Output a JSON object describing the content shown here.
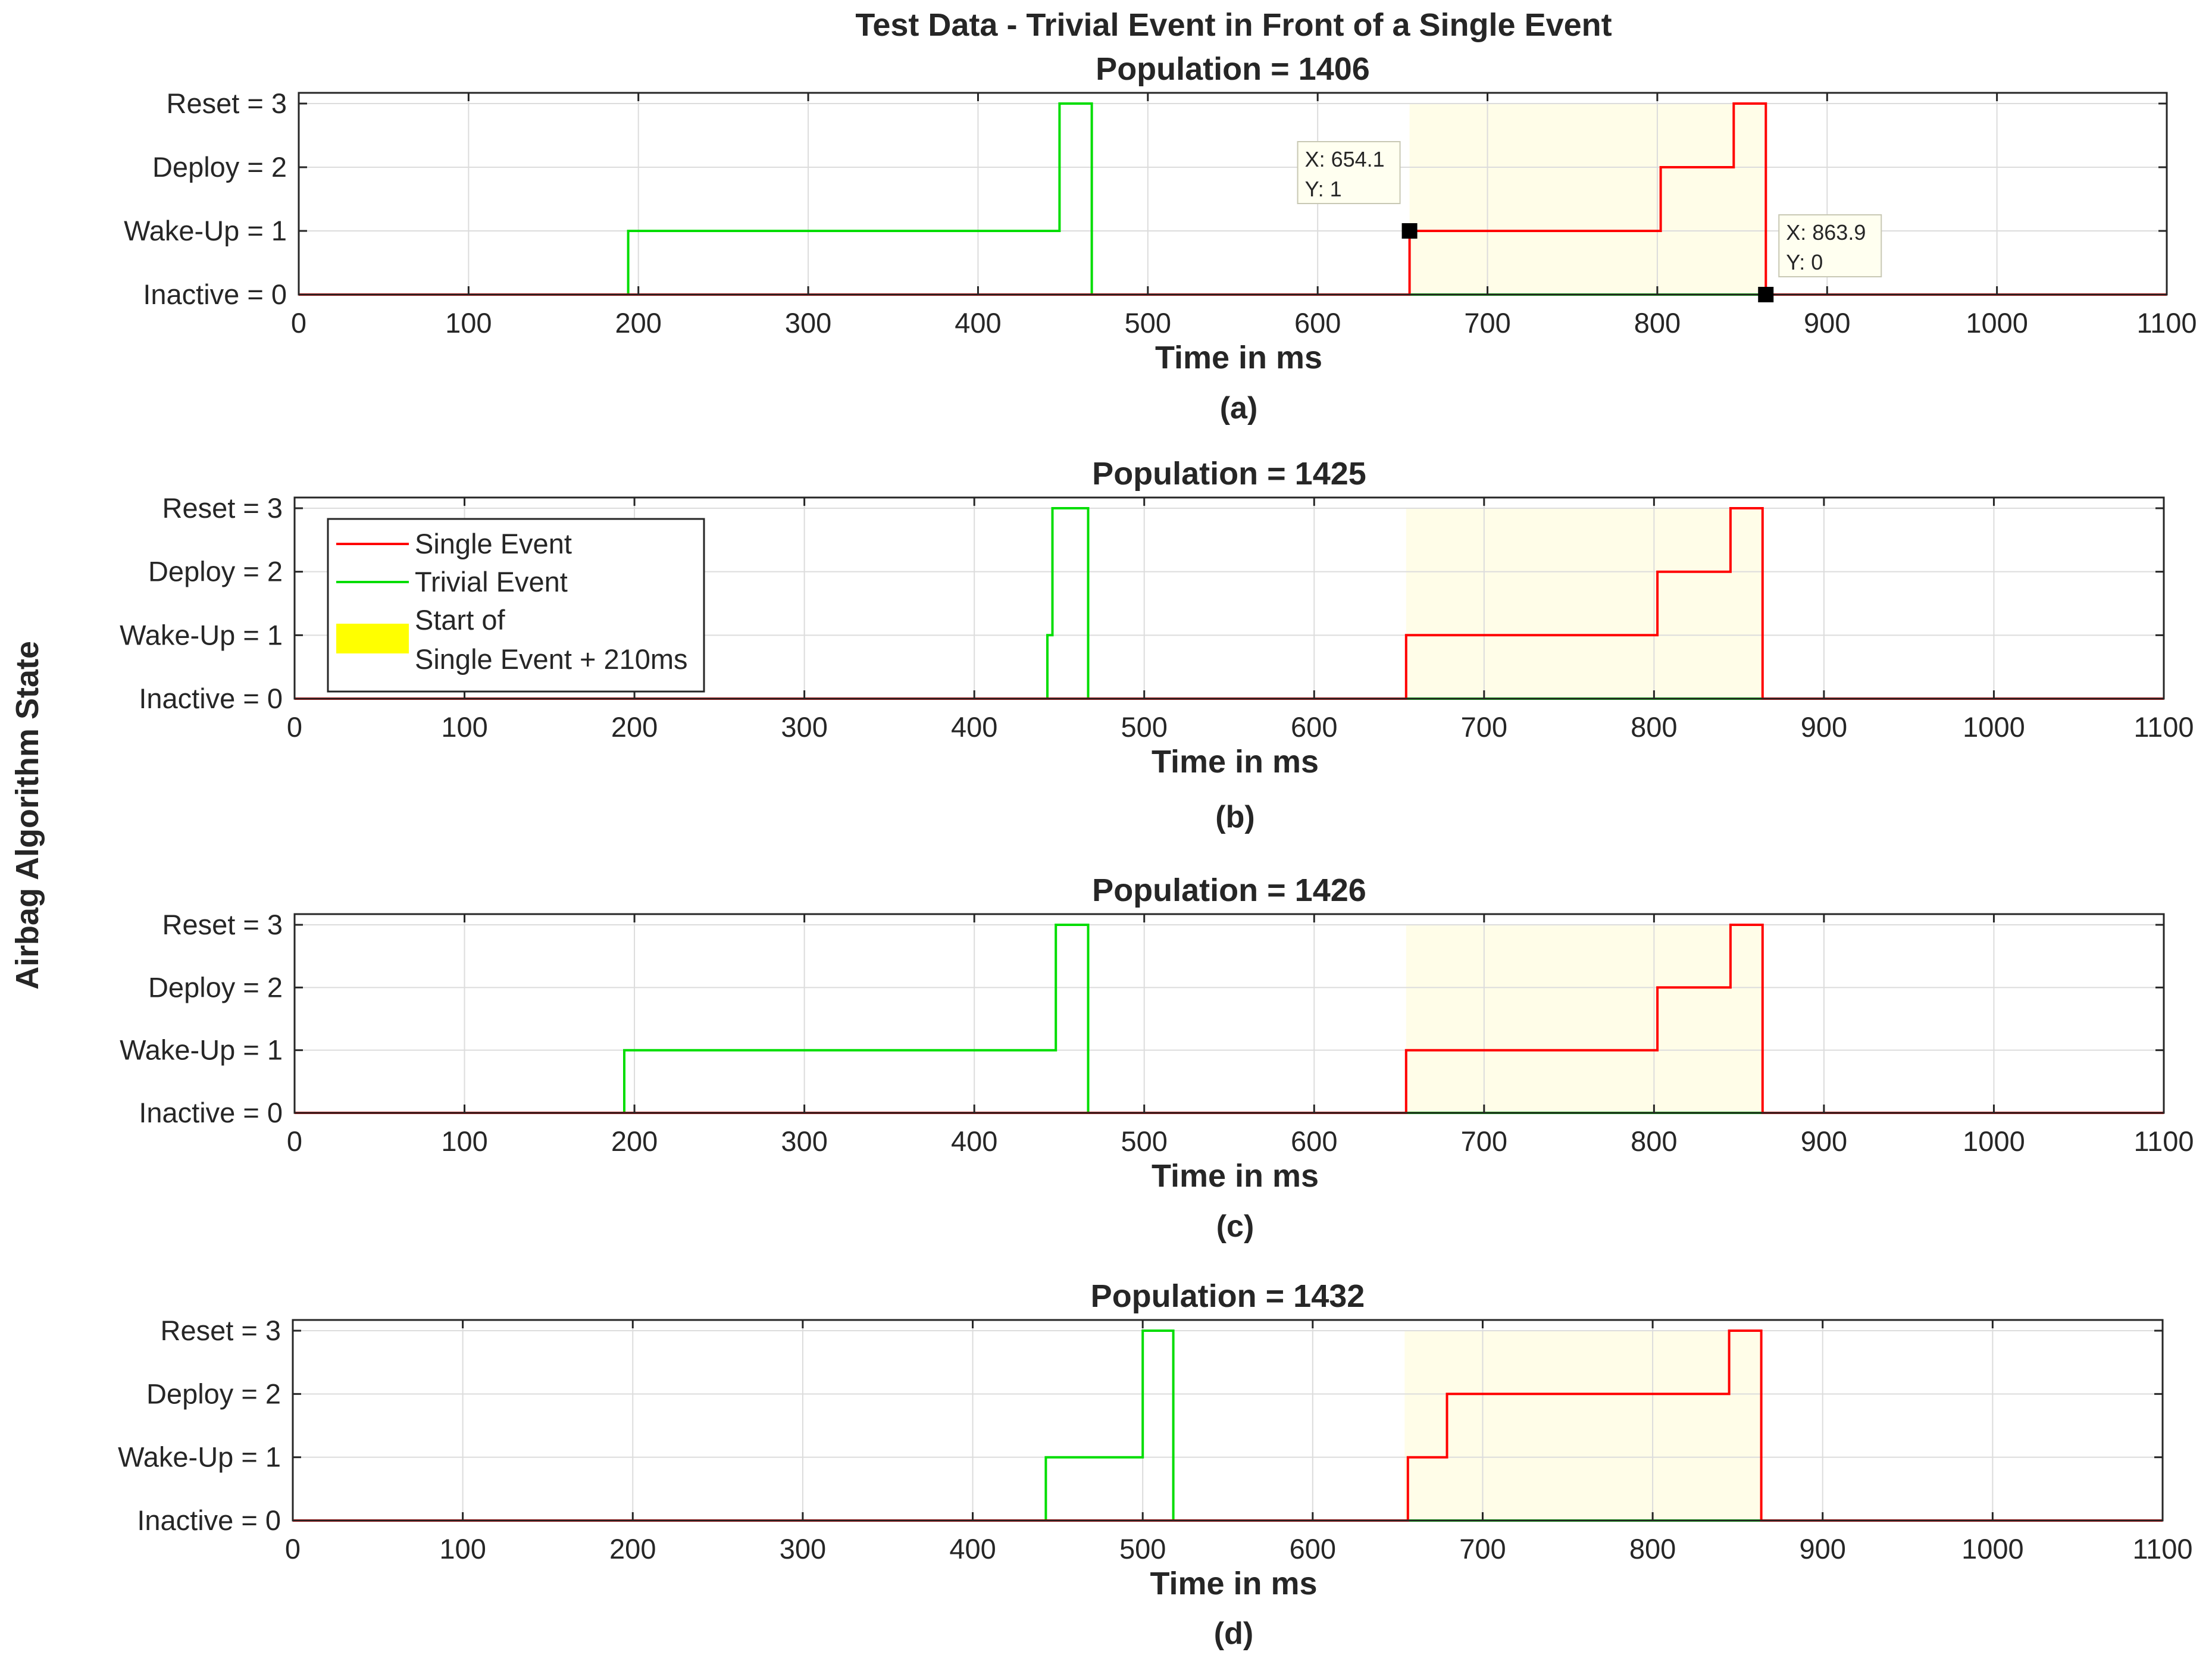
{
  "figure": {
    "title": "Test Data - Trivial Event in Front of a Single Event",
    "ylabel": "Airbag Algorithm State"
  },
  "legend": {
    "single": "Single Event",
    "trivial": "Trivial Event",
    "window_line1": "Start of",
    "window_line2": "Single Event + 210ms"
  },
  "colors": {
    "single": "#ff0000",
    "trivial": "#00dd00",
    "window": "#fffde8",
    "window_legend": "#ffff00",
    "grid": "#dcdcdc",
    "axis": "#262626"
  },
  "chart_data": [
    {
      "type": "line",
      "id": "a",
      "title": "Population = 1406",
      "xlabel": "Time in ms",
      "sublabel": "(a)",
      "xlim": [
        0,
        1100
      ],
      "ylim": [
        0,
        3
      ],
      "xticks": [
        0,
        100,
        200,
        300,
        400,
        500,
        600,
        700,
        800,
        900,
        1000,
        1100
      ],
      "yticks": [
        0,
        1,
        2,
        3
      ],
      "ytick_labels": [
        "Inactive = 0",
        "Wake-Up = 1",
        "Deploy = 2",
        "Reset = 3"
      ],
      "grid": true,
      "highlight": [
        654.1,
        863.9
      ],
      "series": [
        {
          "name": "Trivial Event",
          "x": [
            0,
            194,
            194,
            448,
            448,
            467,
            467,
            1100
          ],
          "y": [
            0,
            0,
            1,
            1,
            3,
            3,
            0,
            0
          ]
        },
        {
          "name": "Single Event",
          "x": [
            0,
            654.1,
            654.1,
            802,
            802,
            845,
            845,
            863.9,
            863.9,
            1100
          ],
          "y": [
            0,
            0,
            1,
            1,
            2,
            2,
            3,
            3,
            0,
            0
          ]
        }
      ],
      "datatips": [
        {
          "x": 654.1,
          "y": 1,
          "label_x": "X: 654.1",
          "label_y": "Y: 1"
        },
        {
          "x": 863.9,
          "y": 0,
          "label_x": "X: 863.9",
          "label_y": "Y: 0"
        }
      ]
    },
    {
      "type": "line",
      "id": "b",
      "title": "Population = 1425",
      "xlabel": "Time in ms",
      "sublabel": "(b)",
      "xlim": [
        0,
        1100
      ],
      "ylim": [
        0,
        3
      ],
      "xticks": [
        0,
        100,
        200,
        300,
        400,
        500,
        600,
        700,
        800,
        900,
        1000,
        1100
      ],
      "yticks": [
        0,
        1,
        2,
        3
      ],
      "ytick_labels": [
        "Inactive = 0",
        "Wake-Up = 1",
        "Deploy = 2",
        "Reset = 3"
      ],
      "grid": true,
      "highlight": [
        654.1,
        863.9
      ],
      "legend": "top-left",
      "series": [
        {
          "name": "Trivial Event",
          "x": [
            0,
            443,
            443,
            446,
            446,
            467,
            467,
            1100
          ],
          "y": [
            0,
            0,
            1,
            1,
            3,
            3,
            0,
            0
          ]
        },
        {
          "name": "Single Event",
          "x": [
            0,
            654.1,
            654.1,
            802,
            802,
            845,
            845,
            863.9,
            863.9,
            1100
          ],
          "y": [
            0,
            0,
            1,
            1,
            2,
            2,
            3,
            3,
            0,
            0
          ]
        }
      ]
    },
    {
      "type": "line",
      "id": "c",
      "title": "Population = 1426",
      "xlabel": "Time in ms",
      "sublabel": "(c)",
      "xlim": [
        0,
        1100
      ],
      "ylim": [
        0,
        3
      ],
      "xticks": [
        0,
        100,
        200,
        300,
        400,
        500,
        600,
        700,
        800,
        900,
        1000,
        1100
      ],
      "yticks": [
        0,
        1,
        2,
        3
      ],
      "ytick_labels": [
        "Inactive = 0",
        "Wake-Up = 1",
        "Deploy = 2",
        "Reset = 3"
      ],
      "grid": true,
      "highlight": [
        654.1,
        863.9
      ],
      "series": [
        {
          "name": "Trivial Event",
          "x": [
            0,
            194,
            194,
            448,
            448,
            467,
            467,
            1100
          ],
          "y": [
            0,
            0,
            1,
            1,
            3,
            3,
            0,
            0
          ]
        },
        {
          "name": "Single Event",
          "x": [
            0,
            654.1,
            654.1,
            802,
            802,
            845,
            845,
            863.9,
            863.9,
            1100
          ],
          "y": [
            0,
            0,
            1,
            1,
            2,
            2,
            3,
            3,
            0,
            0
          ]
        }
      ]
    },
    {
      "type": "line",
      "id": "d",
      "title": "Population = 1432",
      "xlabel": "Time in ms",
      "sublabel": "(d)",
      "xlim": [
        0,
        1100
      ],
      "ylim": [
        0,
        3
      ],
      "xticks": [
        0,
        100,
        200,
        300,
        400,
        500,
        600,
        700,
        800,
        900,
        1000,
        1100
      ],
      "yticks": [
        0,
        1,
        2,
        3
      ],
      "ytick_labels": [
        "Inactive = 0",
        "Wake-Up = 1",
        "Deploy = 2",
        "Reset = 3"
      ],
      "grid": true,
      "highlight": [
        654.1,
        863.9
      ],
      "series": [
        {
          "name": "Trivial Event",
          "x": [
            0,
            443,
            443,
            500,
            500,
            518,
            518,
            1100
          ],
          "y": [
            0,
            0,
            1,
            1,
            3,
            3,
            0,
            0
          ]
        },
        {
          "name": "Single Event",
          "x": [
            0,
            656,
            656,
            679,
            679,
            845,
            845,
            863.9,
            863.9,
            1100
          ],
          "y": [
            0,
            0,
            1,
            1,
            2,
            2,
            3,
            3,
            0,
            0
          ]
        }
      ]
    }
  ]
}
